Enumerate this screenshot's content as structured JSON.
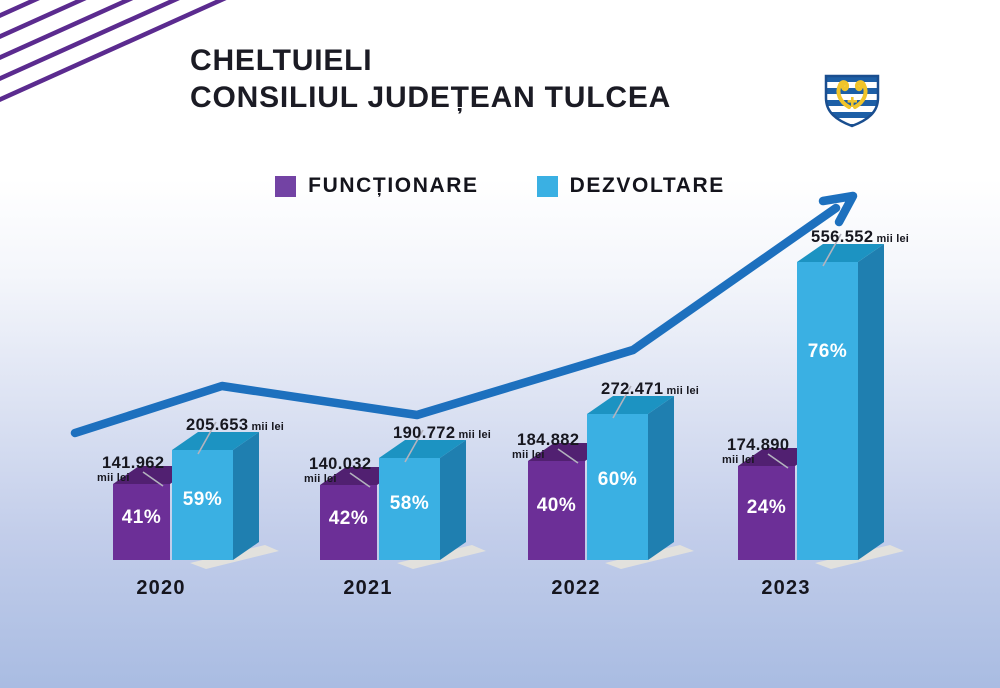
{
  "header": {
    "title_line1": "CHELTUIELI",
    "title_line2": "CONSILIUL JUDEȚEAN TULCEA"
  },
  "logo": {
    "name": "tulcea-county-coat-of-arms"
  },
  "colors": {
    "functionare_front": "#6C2F97",
    "functionare_top": "#512071",
    "functionare_legend": "#7343A4",
    "dezvoltare_front": "#3AB0E3",
    "dezvoltare_top": "#1C93C2",
    "dezvoltare_side": "#1F7FB0",
    "trend_line": "#1D70BE",
    "shadow": "#E6E3DB",
    "tick": "#B3B3BE",
    "deco_lines": "#5B2B8F"
  },
  "chart_data": {
    "type": "bar",
    "title": "CHELTUIELI CONSILIUL JUDEȚEAN TULCEA",
    "unit": "mii lei",
    "categories": [
      "2020",
      "2021",
      "2022",
      "2023"
    ],
    "series": [
      {
        "name": "FUNCȚIONARE",
        "color": "#6C2F97",
        "values": [
          141962,
          140032,
          184882,
          174890
        ],
        "labels": [
          "141.962",
          "140.032",
          "184.882",
          "174.890"
        ],
        "percent": [
          "41%",
          "42%",
          "40%",
          "24%"
        ]
      },
      {
        "name": "DEZVOLTARE",
        "color": "#3AB0E3",
        "values": [
          205653,
          190772,
          272471,
          556552
        ],
        "labels": [
          "205.653",
          "190.772",
          "272.471",
          "556.552"
        ],
        "percent": [
          "59%",
          "58%",
          "60%",
          "76%"
        ]
      }
    ],
    "trend": "ascending arrow over DEZVOLTARE values",
    "legend_position": "top-center",
    "grid": false
  }
}
